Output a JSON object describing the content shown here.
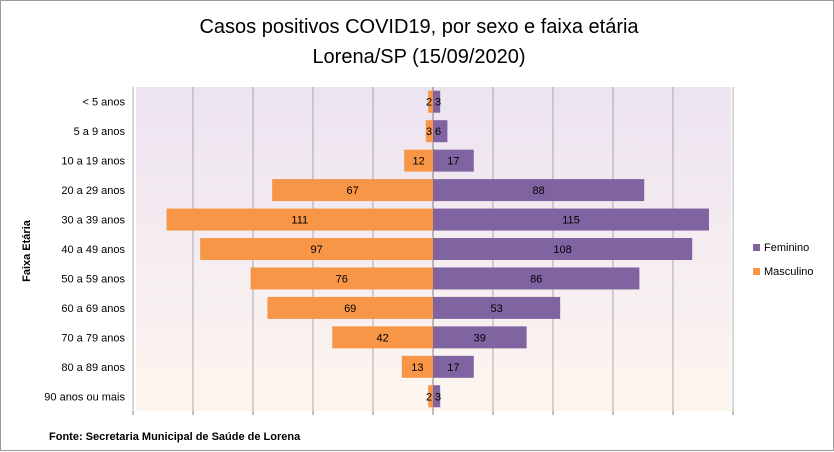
{
  "chart_data": {
    "type": "bar",
    "orientation": "horizontal-butterfly",
    "title": "Casos positivos COVID19, por sexo e faixa etária",
    "subtitle": "Lorena/SP (15/09/2020)",
    "ylabel": "Faixa Etária",
    "source": "Fonte: Secretaria Municipal  de Saúde de Lorena",
    "categories": [
      "< 5 anos",
      "5 a 9 anos",
      "10 a 19 anos",
      "20 a 29 anos",
      "30 a 39 anos",
      "40 a 49 anos",
      "50 a 59 anos",
      "60 a 69 anos",
      "70 a 79 anos",
      "80 a 89 anos",
      "90 anos ou mais"
    ],
    "series": [
      {
        "name": "Feminino",
        "color": "#8064a2",
        "side": "right",
        "values": [
          3,
          6,
          17,
          88,
          115,
          108,
          86,
          53,
          39,
          17,
          3
        ]
      },
      {
        "name": "Masculino",
        "color": "#f79646",
        "side": "left",
        "values": [
          2,
          3,
          12,
          67,
          111,
          97,
          76,
          69,
          42,
          13,
          2
        ]
      }
    ],
    "xlim": [
      -125,
      125
    ],
    "grid": true,
    "legend_position": "right"
  }
}
